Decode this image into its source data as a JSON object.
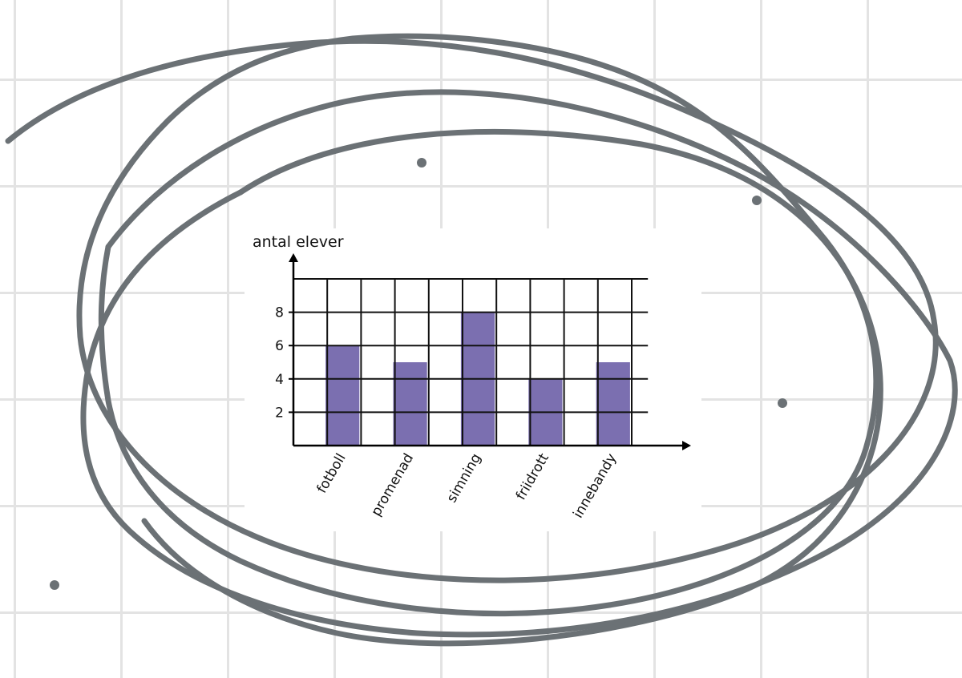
{
  "chart_data": {
    "type": "bar",
    "ylabel": "antal elever",
    "xlabel": "",
    "categories": [
      "fotboll",
      "promenad",
      "simning",
      "friidrott",
      "innebandy"
    ],
    "values": [
      6,
      5,
      8,
      4,
      5
    ],
    "yticks": [
      2,
      4,
      6,
      8
    ],
    "ylim": [
      0,
      10
    ],
    "grid": true,
    "colors": {
      "bar": "#7b6fb0",
      "grid_line": "#111111",
      "ink": "#6b7175",
      "paper_grid": "#e3e3e3"
    }
  }
}
